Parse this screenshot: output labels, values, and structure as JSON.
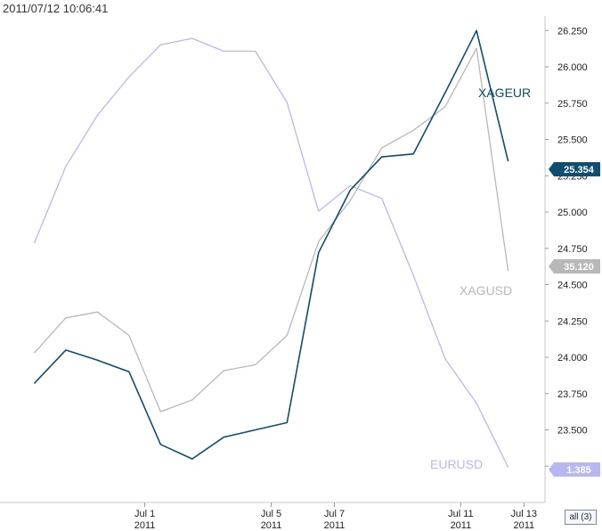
{
  "header": {
    "timestamp": "2011/07/12 10:06:41"
  },
  "controls": {
    "range_button_label": "all (3)"
  },
  "chart_data": {
    "type": "line",
    "title": "",
    "x_ticks": [
      {
        "day": "Jul 1",
        "year": "2011",
        "date": "2011-07-01"
      },
      {
        "day": "Jul 5",
        "year": "2011",
        "date": "2011-07-05"
      },
      {
        "day": "Jul 7",
        "year": "2011",
        "date": "2011-07-07"
      },
      {
        "day": "Jul 11",
        "year": "2011",
        "date": "2011-07-11"
      },
      {
        "day": "Jul 13",
        "year": "2011",
        "date": "2011-07-13"
      }
    ],
    "y_axis": {
      "side": "right",
      "range": [
        23.0,
        26.35
      ],
      "ticks": [
        "23.250",
        "23.500",
        "23.750",
        "24.000",
        "24.250",
        "24.500",
        "24.750",
        "25.000",
        "25.250",
        "25.500",
        "25.750",
        "26.000",
        "26.250"
      ]
    },
    "grid": false,
    "series": [
      {
        "name": "XAGEUR",
        "color": "#0e4e6e",
        "current_value": "25.354",
        "x": [
          "2011-06-27",
          "2011-06-28",
          "2011-06-29",
          "2011-06-30",
          "2011-07-01",
          "2011-07-02",
          "2011-07-03",
          "2011-07-04",
          "2011-07-05",
          "2011-07-06",
          "2011-07-07",
          "2011-07-08",
          "2011-07-09",
          "2011-07-10",
          "2011-07-11",
          "2011-07-12"
        ],
        "values": [
          23.82,
          24.05,
          23.98,
          23.9,
          23.4,
          23.3,
          23.45,
          23.5,
          23.55,
          24.72,
          25.15,
          25.38,
          25.4,
          25.82,
          26.25,
          25.35
        ]
      },
      {
        "name": "XAGUSD",
        "color": "#b8b8b8",
        "current_value": "35.120",
        "x": [
          "2011-06-27",
          "2011-06-28",
          "2011-06-29",
          "2011-06-30",
          "2011-07-01",
          "2011-07-02",
          "2011-07-03",
          "2011-07-04",
          "2011-07-05",
          "2011-07-06",
          "2011-07-07",
          "2011-07-08",
          "2011-07-09",
          "2011-07-10",
          "2011-07-11",
          "2011-07-12"
        ],
        "values": [
          33.7,
          34.3,
          34.4,
          34.0,
          32.7,
          32.9,
          33.4,
          33.5,
          34.0,
          35.6,
          36.3,
          37.2,
          37.5,
          37.9,
          38.9,
          35.1
        ]
      },
      {
        "name": "EURUSD",
        "color": "#b8b8f0",
        "current_value": "1.385",
        "x": [
          "2011-06-27",
          "2011-06-28",
          "2011-06-29",
          "2011-06-30",
          "2011-07-01",
          "2011-07-02",
          "2011-07-03",
          "2011-07-04",
          "2011-07-05",
          "2011-07-06",
          "2011-07-07",
          "2011-07-08",
          "2011-07-09",
          "2011-07-10",
          "2011-07-11",
          "2011-07-12"
        ],
        "values": [
          1.42,
          1.432,
          1.44,
          1.446,
          1.451,
          1.452,
          1.45,
          1.45,
          1.442,
          1.425,
          1.429,
          1.427,
          1.415,
          1.402,
          1.395,
          1.385
        ]
      }
    ]
  }
}
